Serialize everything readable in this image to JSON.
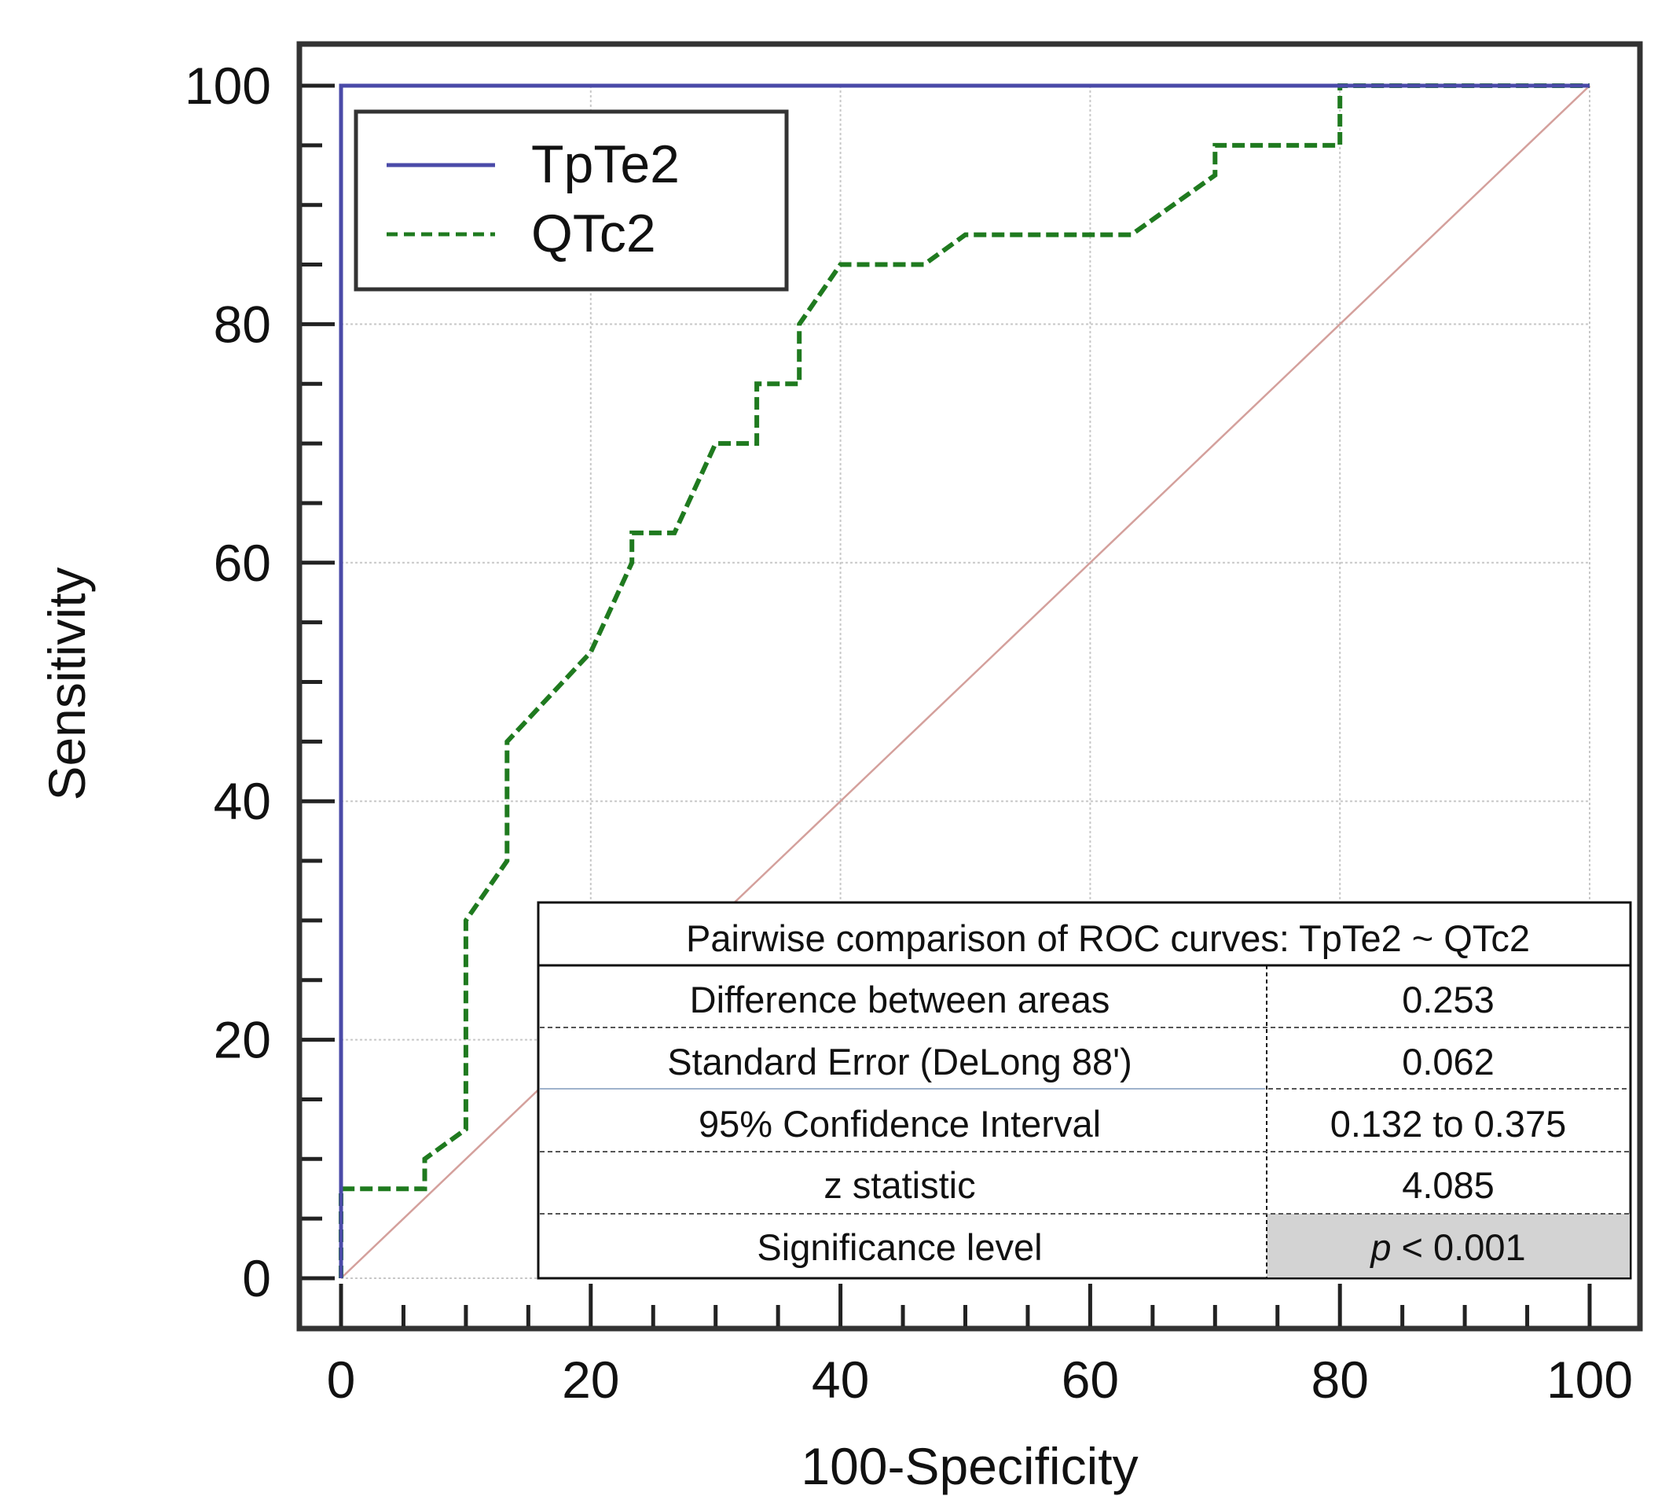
{
  "chart_data": {
    "type": "line",
    "xlabel": "100-Specificity",
    "ylabel": "Sensitivity",
    "xlim": [
      0,
      100
    ],
    "ylim": [
      0,
      100
    ],
    "x_ticks": [
      "0",
      "20",
      "40",
      "60",
      "80",
      "100"
    ],
    "y_ticks": [
      "0",
      "20",
      "40",
      "60",
      "80",
      "100"
    ],
    "grid": true,
    "legend_position": "top-left",
    "series": [
      {
        "name": "TpTe2",
        "style": "solid",
        "color": "#4a4aa8",
        "x": [
          0,
          0,
          100
        ],
        "y": [
          0,
          100,
          100
        ]
      },
      {
        "name": "QTc2",
        "style": "dashed",
        "color": "#1f7a1f",
        "x": [
          0,
          0,
          6.7,
          6.7,
          10,
          10,
          13.3,
          13.3,
          20,
          23.3,
          23.3,
          26.7,
          30,
          33.3,
          33.3,
          36.7,
          36.7,
          40,
          46.7,
          50,
          63.3,
          70,
          70,
          80,
          80,
          100
        ],
        "y": [
          0,
          7.5,
          7.5,
          10,
          12.5,
          30,
          35,
          45,
          52.5,
          60,
          62.5,
          62.5,
          70,
          70,
          75,
          75,
          80,
          85,
          85,
          87.5,
          87.5,
          92.5,
          95,
          95,
          100,
          100
        ]
      },
      {
        "name": "reference",
        "style": "solid",
        "color": "#d4a09c",
        "x": [
          0,
          100
        ],
        "y": [
          0,
          100
        ]
      }
    ],
    "annotation_table": {
      "title": "Pairwise comparison of ROC curves: TpTe2 ~ QTc2",
      "rows": [
        {
          "label": "Difference between areas",
          "value": "0.253"
        },
        {
          "label": "Standard Error (DeLong 88')",
          "value": "0.062"
        },
        {
          "label": "95% Confidence Interval",
          "value": "0.132 to 0.375"
        },
        {
          "label": "z statistic",
          "value": "4.085"
        },
        {
          "label": "Significance level",
          "value_prefix": "p",
          "value": " < 0.001"
        }
      ]
    }
  }
}
